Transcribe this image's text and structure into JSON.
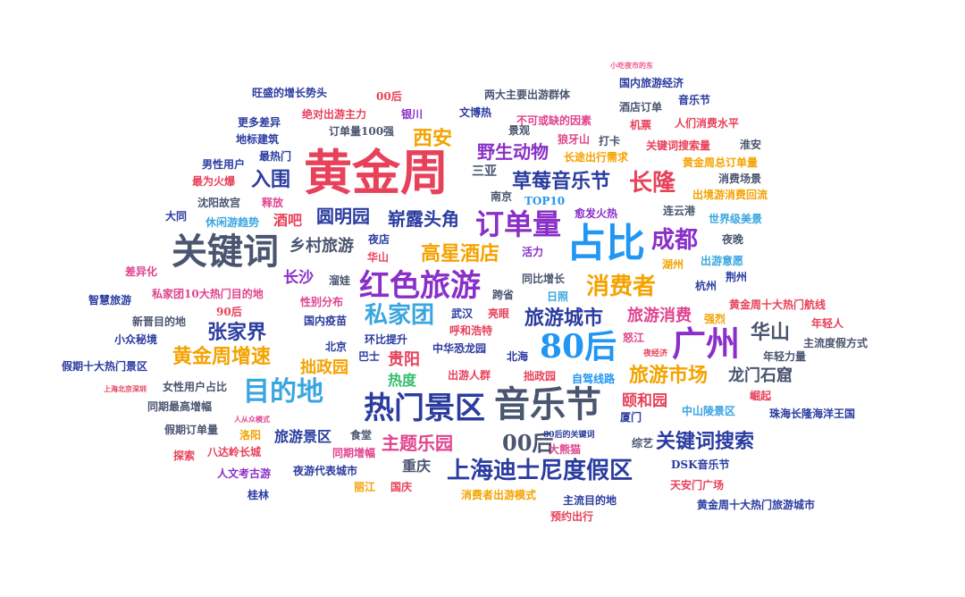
{
  "colors": {
    "red": "#e8415a",
    "orange": "#f4a300",
    "purple": "#8a2fc8",
    "blue": "#2196f3",
    "slate": "#4a5570",
    "grey": "#6c6c6c",
    "magenta": "#e0448e",
    "skyblue": "#3aa6e0",
    "green": "#2fbf6a",
    "navy": "#2b3ca0",
    "pink": "#f25c8a"
  },
  "words": [
    "黄金周",
    "占比",
    "关键词",
    "订单量",
    "80后",
    "音乐节",
    "热门景区",
    "红色旅游",
    "广州",
    "目的地",
    "上海迪士尼度假区",
    "消费者",
    "草莓音乐节",
    "成都",
    "私家团",
    "长隆",
    "入围",
    "西安",
    "高星酒店",
    "圆明园",
    "旅游城市",
    "黄金周增速",
    "关键词搜索",
    "00后",
    "张家界",
    "旅游市场",
    "华山",
    "主题乐园",
    "野生动物",
    "崭露头角",
    "乡村旅游",
    "拙政园",
    "龙门石窟",
    "贵阳",
    "旅游消费",
    "颐和园",
    "长沙",
    "酒吧",
    "重庆",
    "旅游景区",
    "热度",
    "三亚",
    "订单量100强",
    "00后",
    "银川",
    "文博热",
    "旺盛的增长势头",
    "绝对出游主力",
    "两大主要出游群体",
    "不可或缺的因素",
    "国内旅游经济",
    "酒店订单",
    "音乐节",
    "人们消费水平",
    "机票",
    "关键词搜索量",
    "淮安",
    "狼牙山",
    "打卡",
    "长途出行需求",
    "黄金周总订单量",
    "消费场景",
    "出境游消费回流",
    "世界级美景",
    "连云港",
    "愈发火热",
    "TOP10",
    "南京",
    "景观",
    "更多差异",
    "地标建筑",
    "最热门",
    "男性用户",
    "最为火爆",
    "沈阳故宫",
    "释放",
    "大同",
    "休闲游趋势",
    "夜店",
    "华山",
    "活力",
    "夜晚",
    "湖州",
    "出游意愿",
    "荆州",
    "杭州",
    "差异化",
    "智慧旅游",
    "私家团10大热门目的地",
    "性别分布",
    "溜娃",
    "跨省",
    "日照",
    "同比增长",
    "90后",
    "新晋目的地",
    "国内疫苗",
    "武汉",
    "亮眼",
    "黄金周十大热门航线",
    "强烈",
    "年轻人",
    "小众秘境",
    "呼和浩特",
    "中华恐龙园",
    "怒江",
    "夜经济",
    "主流度假方式",
    "年轻力量",
    "假期十大热门景区",
    "北京",
    "环比提升",
    "巴士",
    "北海",
    "出游人群",
    "拙政园",
    "自驾线路",
    "女性用户占比",
    "上海北京深圳",
    "同期最高增幅",
    "厦门",
    "中山陵景区",
    "崛起",
    "珠海长隆海洋王国",
    "人从众模式",
    "假期订单量",
    "洛阳",
    "80后的关键词",
    "大熊猫",
    "综艺",
    "八达岭长城",
    "食堂",
    "同期增幅",
    "探索",
    "DSK音乐节",
    "人文考古游",
    "夜游代表城市",
    "天安门广场",
    "丽江",
    "国庆",
    "消费者出游模式",
    "主流目的地",
    "桂林",
    "预约出行",
    "黄金周十大热门旅游城市",
    "小吃夜市的东"
  ]
}
